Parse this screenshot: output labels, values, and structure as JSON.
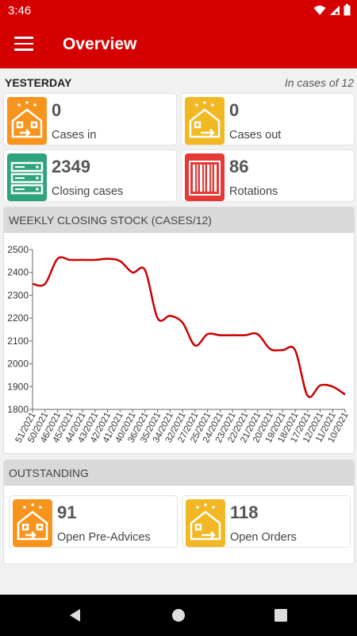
{
  "status": {
    "time": "3:46"
  },
  "appbar": {
    "title": "Overview"
  },
  "yesterday": {
    "heading": "YESTERDAY",
    "unit_note": "In cases of 12",
    "cards": [
      {
        "value": "0",
        "label": "Cases in",
        "icon": "warehouse-in-icon",
        "color": "#f7941d"
      },
      {
        "value": "0",
        "label": "Cases out",
        "icon": "warehouse-out-icon",
        "color": "#f2b824"
      },
      {
        "value": "2349",
        "label": "Closing cases",
        "icon": "server-stack-icon",
        "color": "#2fa37c"
      },
      {
        "value": "86",
        "label": "Rotations",
        "icon": "barcode-icon",
        "color": "#e53935"
      }
    ]
  },
  "weekly": {
    "heading": "WEEKLY CLOSING STOCK (CASES/12)"
  },
  "chart_data": {
    "type": "line",
    "title": "",
    "xlabel": "",
    "ylabel": "",
    "ylim": [
      1800,
      2500
    ],
    "yticks": [
      1800,
      1900,
      2000,
      2100,
      2200,
      2300,
      2400,
      2500
    ],
    "grid": false,
    "color": "#cc0000",
    "x": [
      "51/2021",
      "50/2021",
      "46/2021",
      "45/2021",
      "44/2021",
      "43/2021",
      "42/2021",
      "41/2021",
      "40/2021",
      "36/2021",
      "35/2021",
      "34/2021",
      "32/2021",
      "27/2021",
      "25/2021",
      "24/2021",
      "23/2021",
      "22/2021",
      "21/2021",
      "20/2021",
      "19/2021",
      "18/2021",
      "17/2021",
      "12/2021",
      "11/2021",
      "10/2021"
    ],
    "values": [
      2350,
      2350,
      2460,
      2455,
      2455,
      2455,
      2460,
      2450,
      2400,
      2410,
      2200,
      2210,
      2180,
      2080,
      2130,
      2125,
      2125,
      2125,
      2130,
      2065,
      2060,
      2060,
      1860,
      1905,
      1900,
      1865
    ]
  },
  "outstanding": {
    "heading": "OUTSTANDING",
    "cards": [
      {
        "value": "91",
        "label": "Open Pre-Advices",
        "icon": "warehouse-in-icon",
        "color": "#f7941d"
      },
      {
        "value": "118",
        "label": "Open Orders",
        "icon": "warehouse-out-icon",
        "color": "#f2b824"
      }
    ]
  }
}
